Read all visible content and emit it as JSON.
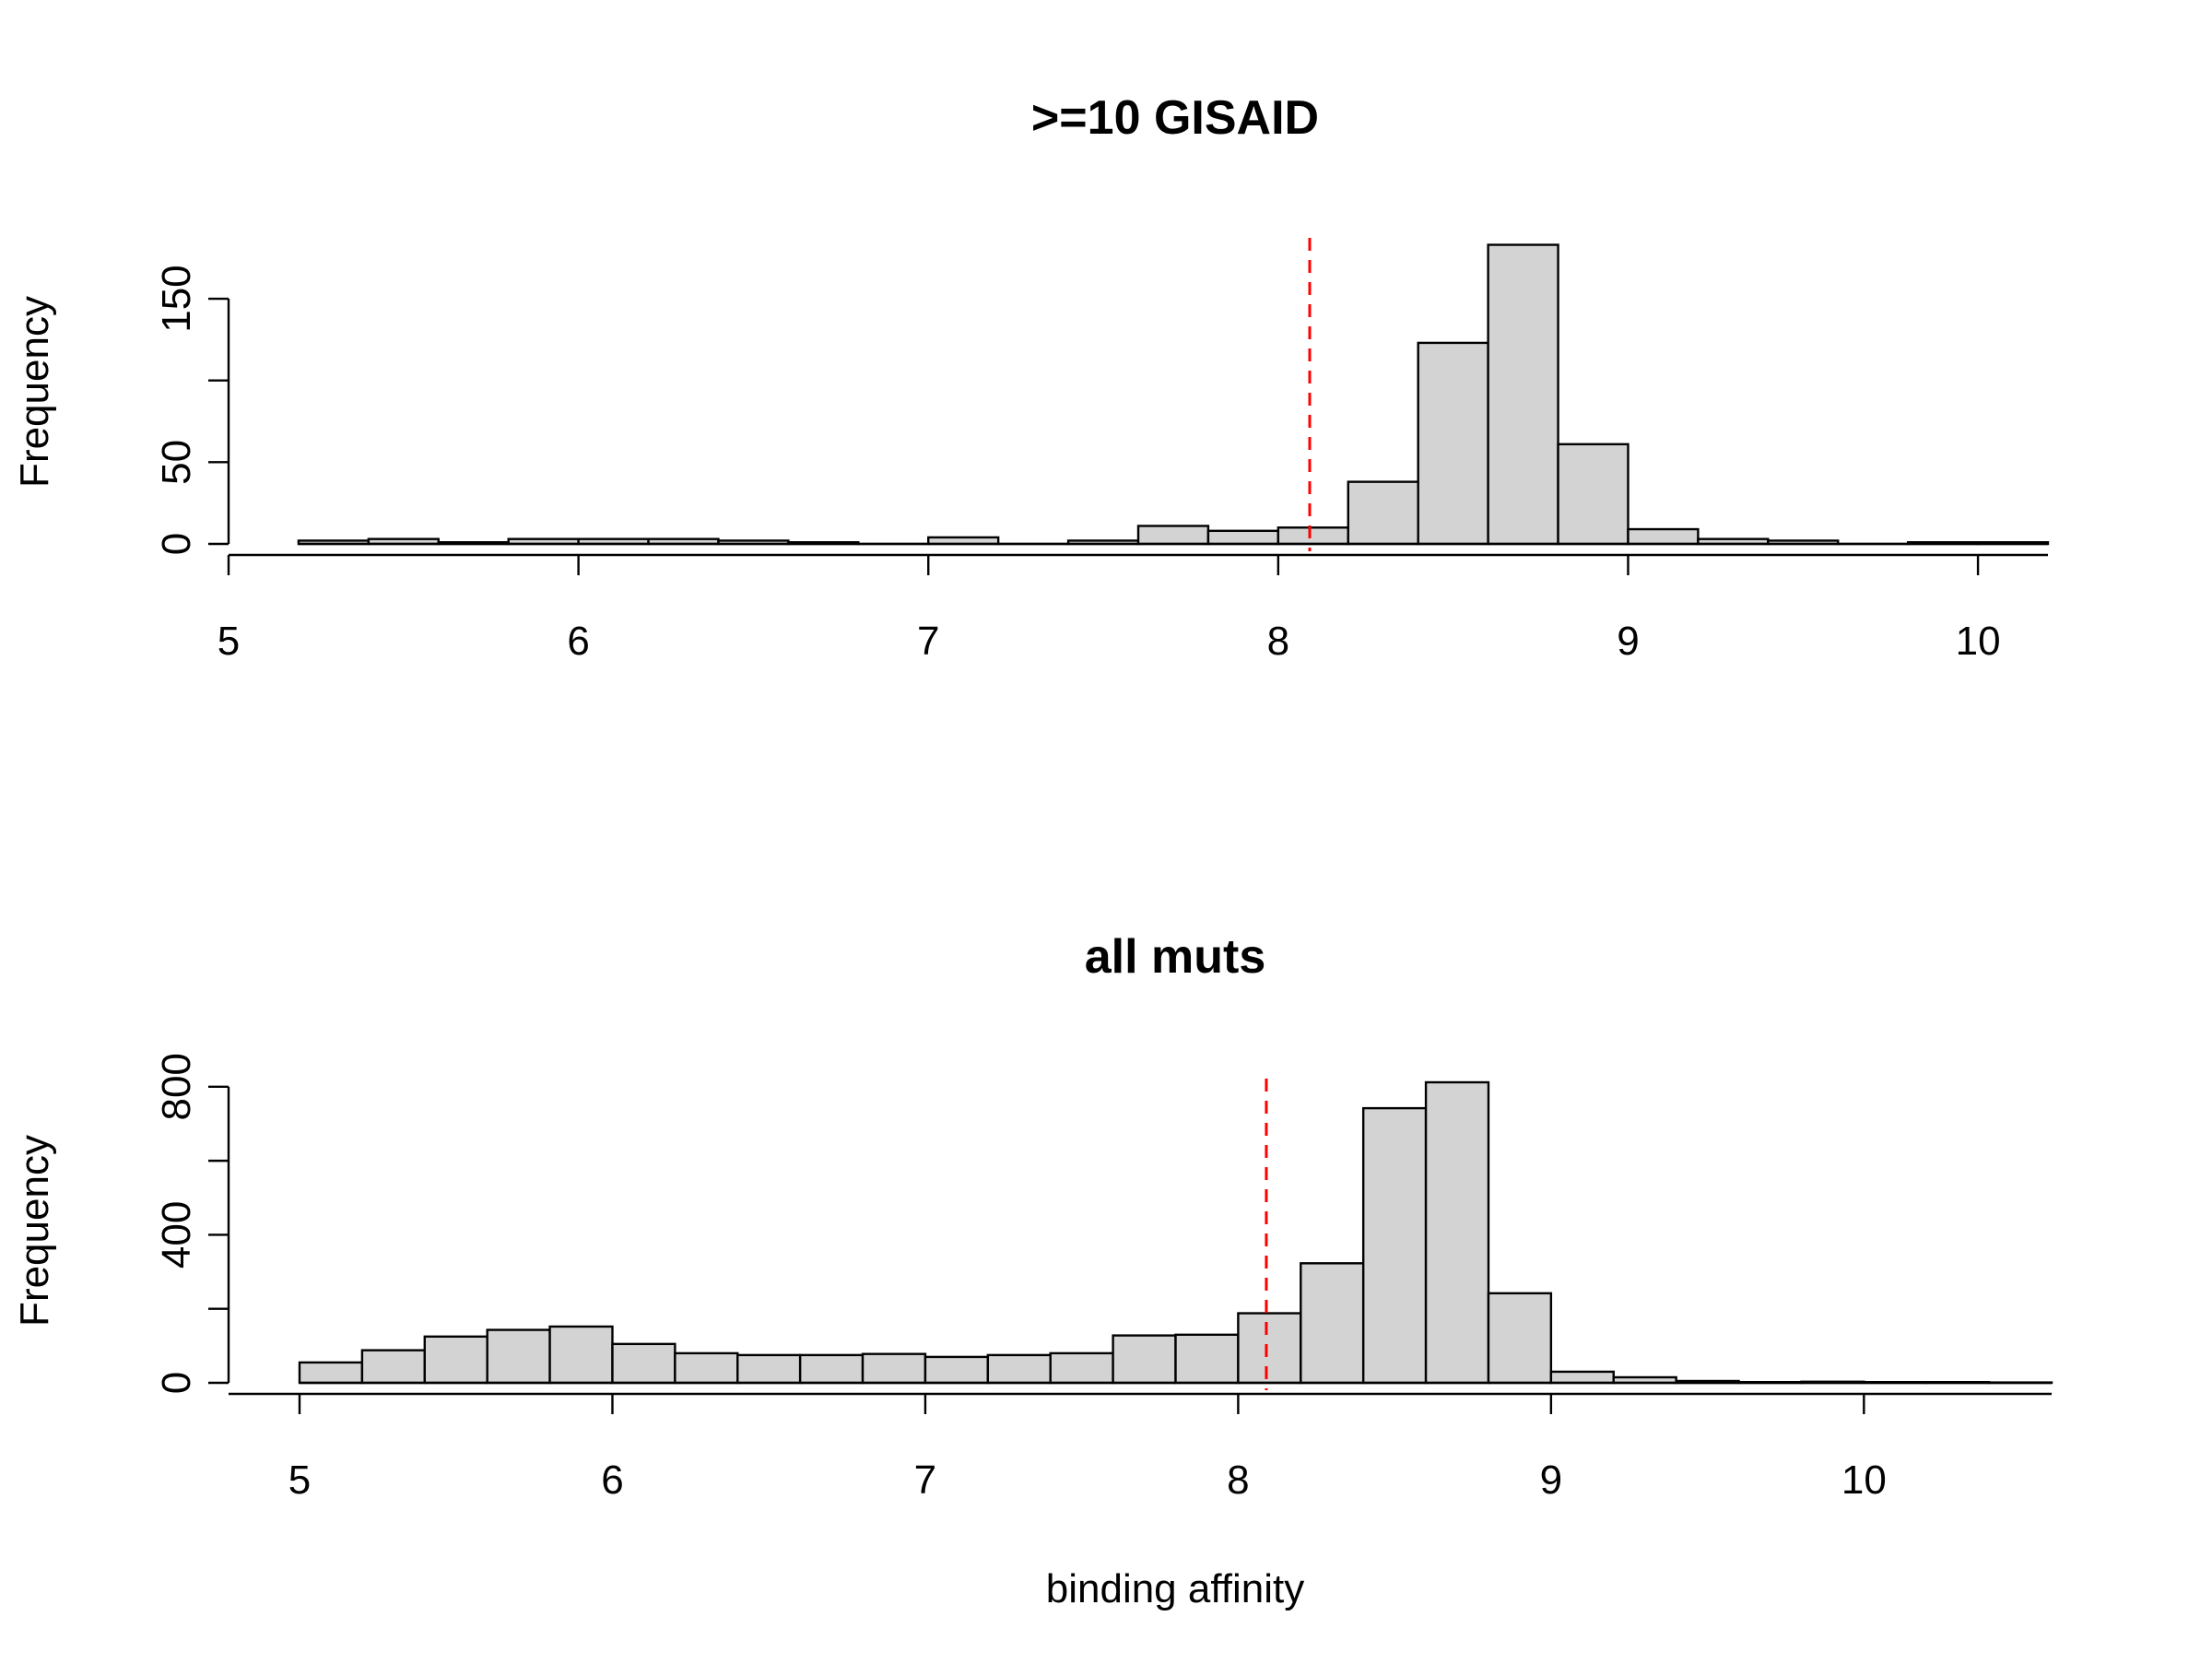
{
  "chart_data": [
    {
      "type": "bar",
      "title": ">=10 GISAID",
      "xlabel": "",
      "ylabel": "Frequency",
      "bin_width": 0.2,
      "bins_start": [
        5.2,
        5.4,
        5.6,
        5.8,
        6.0,
        6.2,
        6.4,
        6.6,
        6.8,
        7.0,
        7.2,
        7.4,
        7.6,
        7.8,
        8.0,
        8.2,
        8.4,
        8.6,
        8.8,
        9.0,
        9.2,
        9.4,
        9.6,
        9.8,
        10.0
      ],
      "values": [
        2,
        3,
        1,
        3,
        3,
        3,
        2,
        1,
        0,
        4,
        0,
        2,
        11,
        8,
        10,
        38,
        123,
        183,
        61,
        9,
        3,
        2,
        0,
        1,
        1
      ],
      "xlim": [
        5,
        10.2
      ],
      "ylim": [
        0,
        185
      ],
      "xticks": [
        "5",
        "6",
        "7",
        "8",
        "9",
        "10"
      ],
      "yticks": [
        "0",
        "50",
        "150"
      ],
      "ytick_values": [
        0,
        50,
        100,
        150
      ],
      "reference_line_x": 8.09,
      "reference_line_color": "#ff0000",
      "bar_color": "#d3d3d3"
    },
    {
      "type": "bar",
      "title": "all muts",
      "xlabel": "binding affinity",
      "ylabel": "Frequency",
      "bin_width": 0.2,
      "bins_start": [
        5.0,
        5.2,
        5.4,
        5.6,
        5.8,
        6.0,
        6.2,
        6.4,
        6.6,
        6.8,
        7.0,
        7.2,
        7.4,
        7.6,
        7.8,
        8.0,
        8.2,
        8.4,
        8.6,
        8.8,
        9.0,
        9.2,
        9.4,
        9.6,
        9.8,
        10.0,
        10.2,
        10.4
      ],
      "values": [
        55,
        88,
        125,
        143,
        152,
        105,
        80,
        75,
        75,
        78,
        70,
        75,
        80,
        128,
        130,
        188,
        323,
        742,
        812,
        242,
        30,
        15,
        5,
        2,
        3,
        2,
        2,
        1
      ],
      "xlim": [
        5,
        10.6
      ],
      "ylim": [
        0,
        812
      ],
      "xticks": [
        "5",
        "6",
        "7",
        "8",
        "9",
        "10"
      ],
      "yticks": [
        "0",
        "400",
        "800"
      ],
      "ytick_values": [
        0,
        200,
        400,
        600,
        800
      ],
      "reference_line_x": 8.09,
      "reference_line_color": "#ff0000",
      "bar_color": "#d3d3d3"
    }
  ]
}
